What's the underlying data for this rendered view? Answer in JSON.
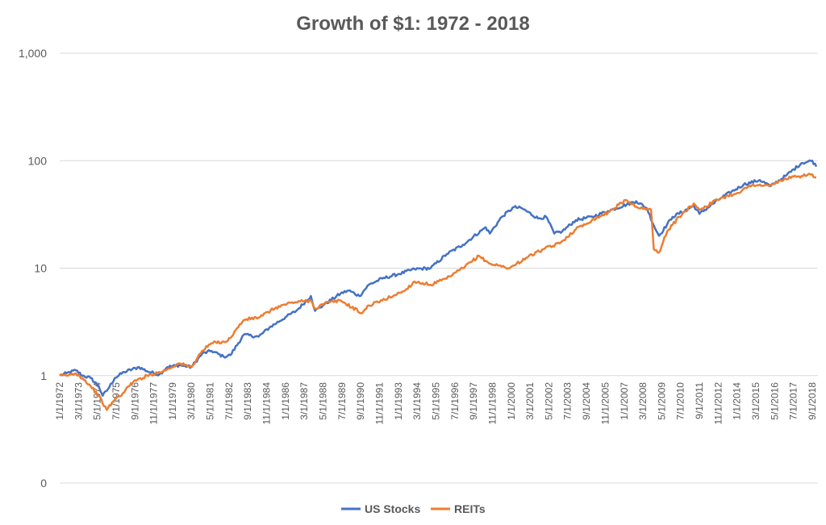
{
  "chart_data": {
    "type": "line",
    "title": "Growth of $1: 1972 - 2018",
    "y_scale": "log",
    "ylim": [
      0.1,
      1000
    ],
    "y_ticks": [
      {
        "value": 1000,
        "label": "1,000"
      },
      {
        "value": 100,
        "label": "100"
      },
      {
        "value": 10,
        "label": "10"
      },
      {
        "value": 1,
        "label": "1"
      },
      {
        "value": 0.1,
        "label": "0"
      }
    ],
    "x_tick_labels": [
      "1/1/1972",
      "3/1/1973",
      "5/1/1974",
      "7/1/1975",
      "9/1/1976",
      "11/1/1977",
      "1/1/1979",
      "3/1/1980",
      "5/1/1981",
      "7/1/1982",
      "9/1/1983",
      "11/1/1984",
      "1/1/1986",
      "3/1/1987",
      "5/1/1988",
      "7/1/1989",
      "9/1/1990",
      "11/1/1991",
      "1/1/1993",
      "3/1/1994",
      "5/1/1995",
      "7/1/1996",
      "9/1/1997",
      "11/1/1998",
      "1/1/2000",
      "3/1/2001",
      "5/1/2002",
      "7/1/2003",
      "9/1/2004",
      "11/1/2005",
      "1/1/2007",
      "3/1/2008",
      "5/1/2009",
      "7/1/2010",
      "9/1/2011",
      "11/1/2012",
      "1/1/2014",
      "3/1/2015",
      "5/1/2016",
      "7/1/2017",
      "9/1/2018"
    ],
    "grid": true,
    "legend_position": "bottom",
    "series": [
      {
        "name": "US Stocks",
        "color": "#4472C4",
        "points": [
          [
            "1972-01",
            1.0
          ],
          [
            "1972-06",
            1.05
          ],
          [
            "1973-01",
            1.12
          ],
          [
            "1973-06",
            1.0
          ],
          [
            "1973-12",
            0.95
          ],
          [
            "1974-06",
            0.8
          ],
          [
            "1974-09",
            0.65
          ],
          [
            "1975-01",
            0.75
          ],
          [
            "1975-06",
            0.95
          ],
          [
            "1976-01",
            1.08
          ],
          [
            "1976-12",
            1.2
          ],
          [
            "1977-06",
            1.1
          ],
          [
            "1978-03",
            1.02
          ],
          [
            "1978-09",
            1.2
          ],
          [
            "1979-06",
            1.25
          ],
          [
            "1980-03",
            1.2
          ],
          [
            "1980-11",
            1.6
          ],
          [
            "1981-06",
            1.7
          ],
          [
            "1982-03",
            1.5
          ],
          [
            "1982-08",
            1.55
          ],
          [
            "1983-06",
            2.4
          ],
          [
            "1984-05",
            2.3
          ],
          [
            "1985-01",
            2.8
          ],
          [
            "1986-01",
            3.5
          ],
          [
            "1986-09",
            4.0
          ],
          [
            "1987-08",
            5.5
          ],
          [
            "1987-11",
            4.0
          ],
          [
            "1988-06",
            4.6
          ],
          [
            "1989-06",
            5.8
          ],
          [
            "1989-12",
            6.2
          ],
          [
            "1990-08",
            5.5
          ],
          [
            "1991-03",
            7.0
          ],
          [
            "1992-01",
            8.0
          ],
          [
            "1993-01",
            8.8
          ],
          [
            "1994-01",
            9.8
          ],
          [
            "1995-01",
            10.0
          ],
          [
            "1996-01",
            13.5
          ],
          [
            "1997-01",
            16.5
          ],
          [
            "1998-06",
            24.0
          ],
          [
            "1998-09",
            21.0
          ],
          [
            "1999-06",
            30.0
          ],
          [
            "2000-03",
            37.0
          ],
          [
            "2000-09",
            36.0
          ],
          [
            "2001-09",
            29.0
          ],
          [
            "2002-03",
            30.0
          ],
          [
            "2002-09",
            21.0
          ],
          [
            "2003-03",
            22.0
          ],
          [
            "2004-01",
            28.0
          ],
          [
            "2005-01",
            30.0
          ],
          [
            "2006-01",
            34.0
          ],
          [
            "2007-10",
            42.0
          ],
          [
            "2008-06",
            36.0
          ],
          [
            "2008-11",
            25.0
          ],
          [
            "2009-03",
            20.0
          ],
          [
            "2010-01",
            30.0
          ],
          [
            "2011-05",
            38.0
          ],
          [
            "2011-09",
            32.0
          ],
          [
            "2013-01",
            45.0
          ],
          [
            "2014-06",
            60.0
          ],
          [
            "2015-06",
            66.0
          ],
          [
            "2016-02",
            58.0
          ],
          [
            "2017-01",
            72.0
          ],
          [
            "2018-01",
            95.0
          ],
          [
            "2018-09",
            100.0
          ],
          [
            "2018-12",
            88.0
          ]
        ]
      },
      {
        "name": "REITs",
        "color": "#ED7D31",
        "points": [
          [
            "1972-01",
            1.0
          ],
          [
            "1972-06",
            1.0
          ],
          [
            "1973-01",
            1.05
          ],
          [
            "1973-06",
            0.95
          ],
          [
            "1973-12",
            0.8
          ],
          [
            "1974-06",
            0.65
          ],
          [
            "1974-12",
            0.48
          ],
          [
            "1975-06",
            0.6
          ],
          [
            "1976-01",
            0.7
          ],
          [
            "1976-06",
            0.85
          ],
          [
            "1977-06",
            1.0
          ],
          [
            "1978-06",
            1.1
          ],
          [
            "1979-06",
            1.3
          ],
          [
            "1980-03",
            1.2
          ],
          [
            "1980-11",
            1.7
          ],
          [
            "1981-06",
            2.0
          ],
          [
            "1982-06",
            2.1
          ],
          [
            "1983-06",
            3.3
          ],
          [
            "1984-06",
            3.5
          ],
          [
            "1985-06",
            4.3
          ],
          [
            "1986-06",
            4.8
          ],
          [
            "1987-08",
            5.0
          ],
          [
            "1987-11",
            4.2
          ],
          [
            "1988-06",
            4.7
          ],
          [
            "1989-06",
            5.0
          ],
          [
            "1990-10",
            3.8
          ],
          [
            "1991-03",
            4.5
          ],
          [
            "1992-01",
            5.0
          ],
          [
            "1993-06",
            6.2
          ],
          [
            "1994-01",
            7.5
          ],
          [
            "1995-01",
            7.0
          ],
          [
            "1996-01",
            8.0
          ],
          [
            "1997-01",
            10.0
          ],
          [
            "1998-01",
            13.0
          ],
          [
            "1998-09",
            11.0
          ],
          [
            "1999-12",
            10.0
          ],
          [
            "2000-12",
            12.5
          ],
          [
            "2002-01",
            15.0
          ],
          [
            "2003-01",
            17.0
          ],
          [
            "2004-01",
            23.0
          ],
          [
            "2005-01",
            28.0
          ],
          [
            "2006-01",
            33.0
          ],
          [
            "2007-02",
            43.0
          ],
          [
            "2008-01",
            36.0
          ],
          [
            "2008-09",
            35.0
          ],
          [
            "2008-11",
            15.0
          ],
          [
            "2009-03",
            14.0
          ],
          [
            "2009-09",
            22.0
          ],
          [
            "2010-06",
            30.0
          ],
          [
            "2011-05",
            40.0
          ],
          [
            "2011-09",
            35.0
          ],
          [
            "2013-01",
            45.0
          ],
          [
            "2014-01",
            50.0
          ],
          [
            "2015-01",
            60.0
          ],
          [
            "2016-01",
            58.0
          ],
          [
            "2017-01",
            68.0
          ],
          [
            "2018-01",
            72.0
          ],
          [
            "2018-06",
            75.0
          ],
          [
            "2018-12",
            70.0
          ]
        ]
      }
    ]
  }
}
